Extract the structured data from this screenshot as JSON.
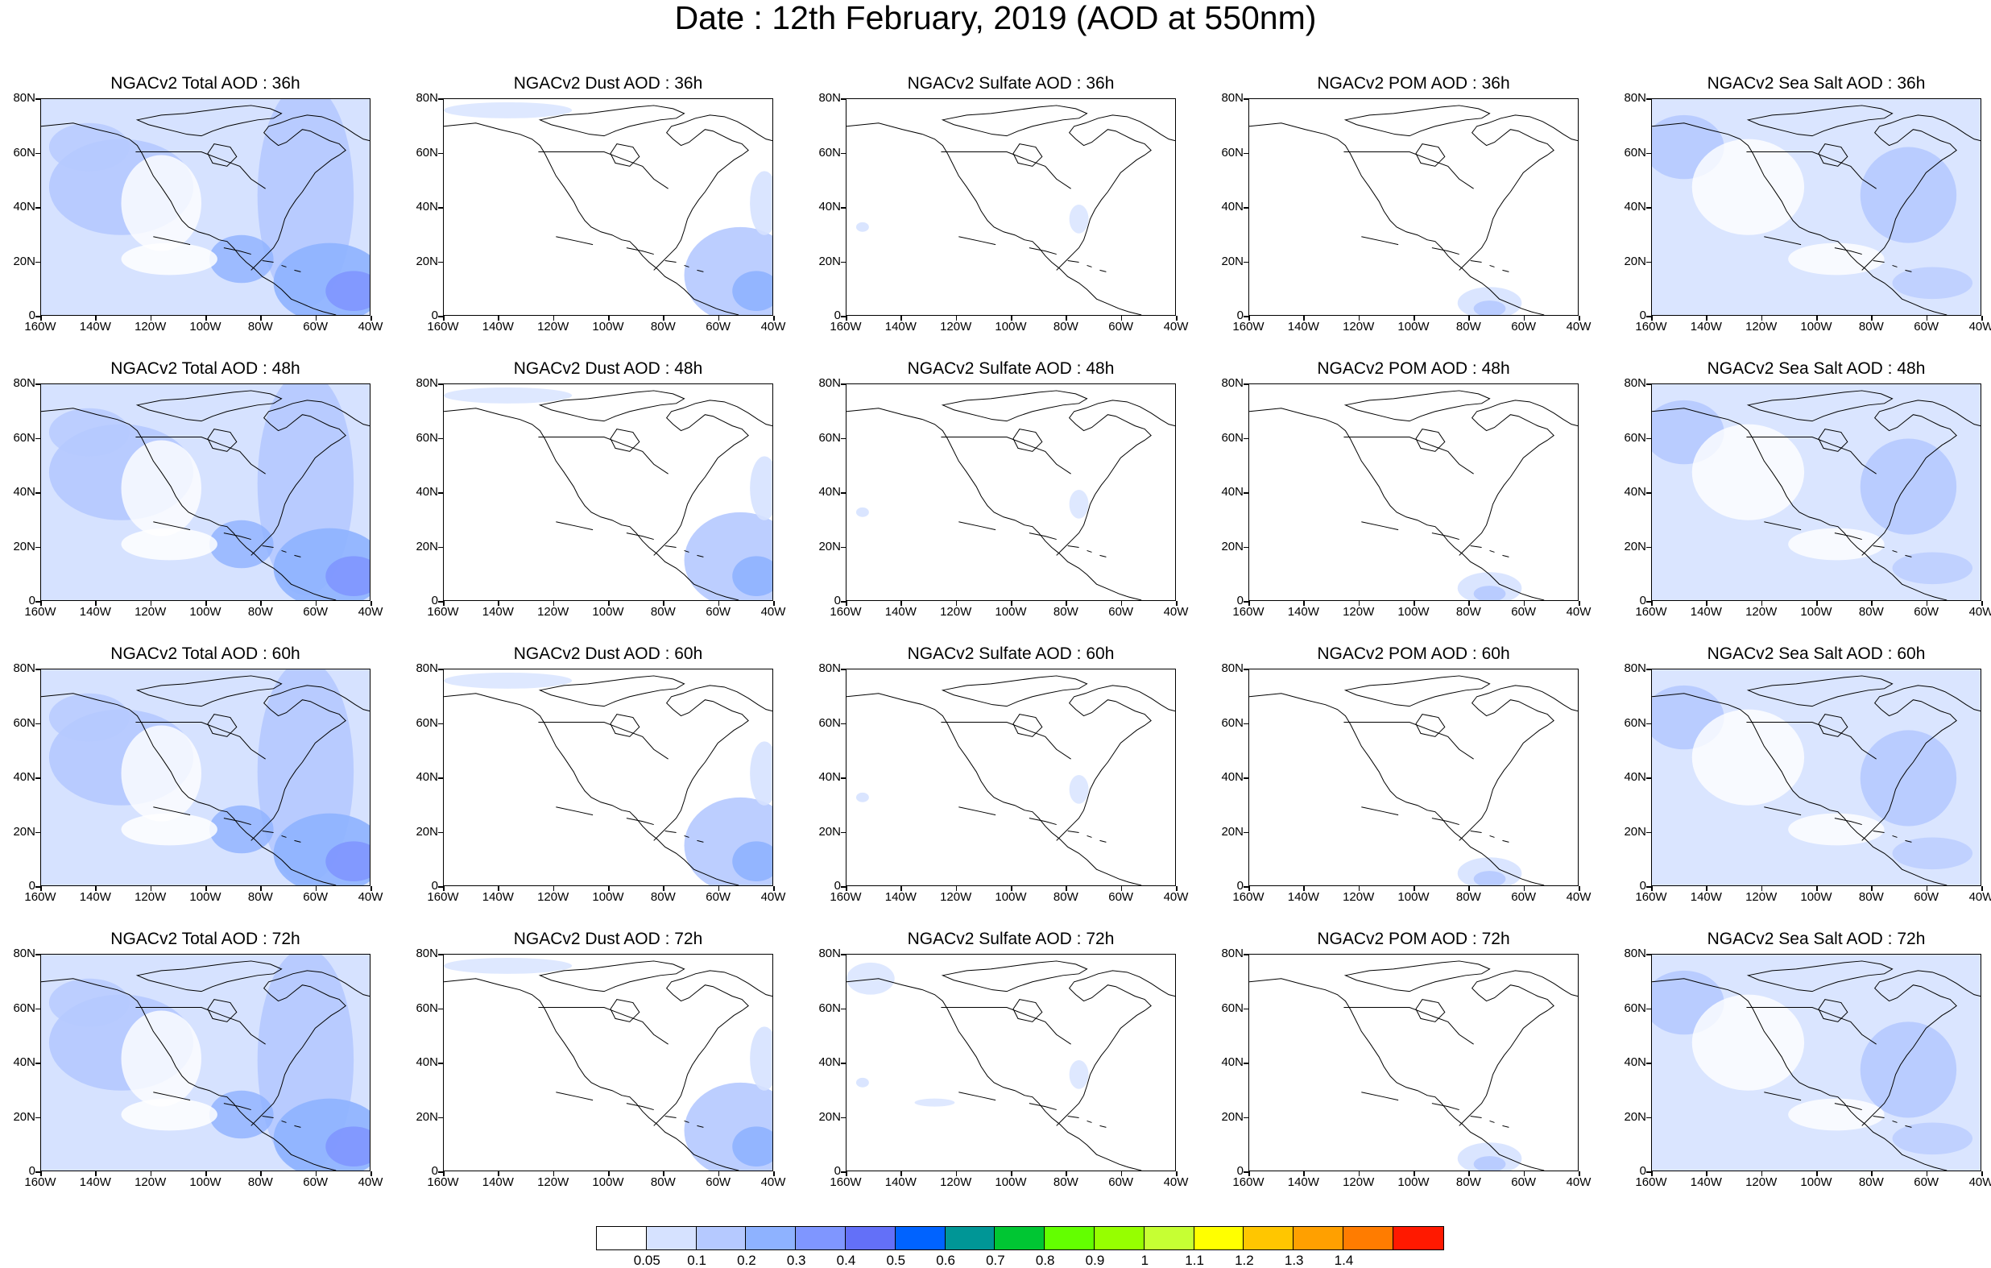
{
  "title": "Date : 12th February, 2019 (AOD at 550nm)",
  "panels": [
    {
      "title": "NGACv2 Total AOD : 36h",
      "type": "total"
    },
    {
      "title": "NGACv2 Dust AOD : 36h",
      "type": "dust"
    },
    {
      "title": "NGACv2 Sulfate AOD : 36h",
      "type": "sulfate"
    },
    {
      "title": "NGACv2 POM AOD : 36h",
      "type": "pom"
    },
    {
      "title": "NGACv2 Sea Salt AOD : 36h",
      "type": "seasalt"
    },
    {
      "title": "NGACv2 Total AOD : 48h",
      "type": "total"
    },
    {
      "title": "NGACv2 Dust AOD : 48h",
      "type": "dust"
    },
    {
      "title": "NGACv2 Sulfate AOD : 48h",
      "type": "sulfate"
    },
    {
      "title": "NGACv2 POM AOD : 48h",
      "type": "pom"
    },
    {
      "title": "NGACv2 Sea Salt AOD : 48h",
      "type": "seasalt"
    },
    {
      "title": "NGACv2 Total AOD : 60h",
      "type": "total"
    },
    {
      "title": "NGACv2 Dust AOD : 60h",
      "type": "dust"
    },
    {
      "title": "NGACv2 Sulfate AOD : 60h",
      "type": "sulfate"
    },
    {
      "title": "NGACv2 POM AOD : 60h",
      "type": "pom"
    },
    {
      "title": "NGACv2 Sea Salt AOD : 60h",
      "type": "seasalt"
    },
    {
      "title": "NGACv2 Total AOD : 72h",
      "type": "total"
    },
    {
      "title": "NGACv2 Dust AOD : 72h",
      "type": "dust"
    },
    {
      "title": "NGACv2 Sulfate AOD : 72h",
      "type": "sulfate"
    },
    {
      "title": "NGACv2 POM AOD : 72h",
      "type": "pom"
    },
    {
      "title": "NGACv2 Sea Salt  AOD : 72h",
      "type": "seasalt"
    }
  ],
  "lat_labels": [
    "80N",
    "60N",
    "40N",
    "20N",
    "0"
  ],
  "lon_labels": [
    "160W",
    "140W",
    "120W",
    "100W",
    "80W",
    "60W",
    "40W"
  ],
  "colorbar": {
    "colors": [
      "#ffffff",
      "#d6e2ff",
      "#b5c9ff",
      "#8eb2ff",
      "#7f96ff",
      "#6370f8",
      "#0063ff",
      "#009696",
      "#00c633",
      "#63ff00",
      "#96ff00",
      "#c6ff33",
      "#ffff00",
      "#ffc600",
      "#ffa000",
      "#ff7c00",
      "#ff1900"
    ],
    "labels": [
      "0.05",
      "0.1",
      "0.2",
      "0.3",
      "0.4",
      "0.5",
      "0.6",
      "0.7",
      "0.8",
      "0.9",
      "1",
      "1.1",
      "1.2",
      "1.3",
      "1.4"
    ]
  }
}
